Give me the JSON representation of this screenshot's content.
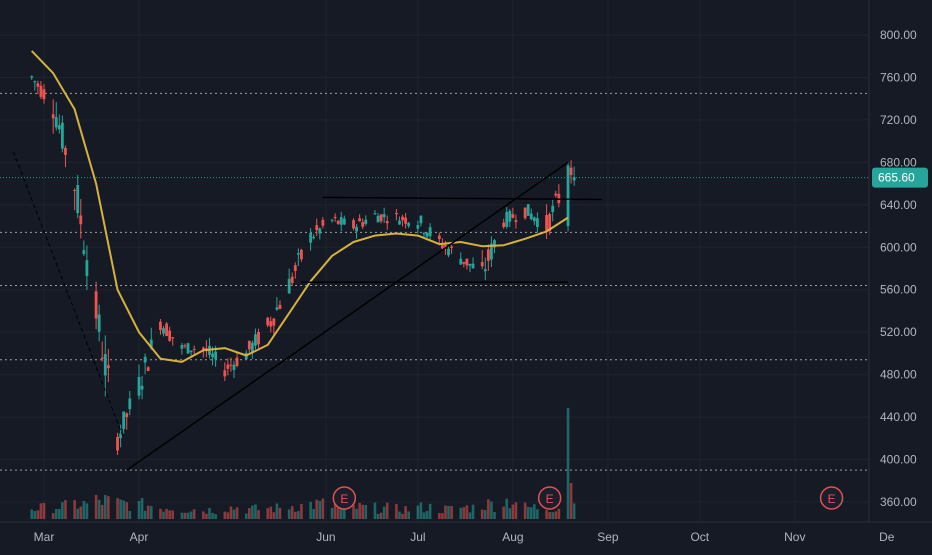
{
  "chart_data": {
    "type": "candlestick",
    "price_axis": {
      "ticks": [
        "800.00",
        "760.00",
        "720.00",
        "680.00",
        "640.00",
        "600.00",
        "560.00",
        "520.00",
        "480.00",
        "440.00",
        "400.00",
        "360.00"
      ],
      "range": [
        352,
        822
      ]
    },
    "time_axis": {
      "ticks": [
        "Mar",
        "Apr",
        "Jun",
        "Jul",
        "Aug",
        "Sep",
        "Oct",
        "Nov",
        "De"
      ]
    },
    "last_price": {
      "label": "665.60",
      "value": 665.6
    },
    "colors": {
      "up": "#26a69a",
      "down": "#ef5350",
      "ma": "#d4b23c",
      "background": "#161a25",
      "grid": "#2a2e39",
      "axis_text": "#b2b5be",
      "earnings": "#e05252"
    },
    "moving_average": {
      "type": "line",
      "points": [
        [
          "2024-02-26",
          785
        ],
        [
          "2024-03-04",
          764
        ],
        [
          "2024-03-11",
          730
        ],
        [
          "2024-03-18",
          660
        ],
        [
          "2024-03-25",
          560
        ],
        [
          "2024-04-01",
          520
        ],
        [
          "2024-04-08",
          495
        ],
        [
          "2024-04-15",
          492
        ],
        [
          "2024-04-22",
          503
        ],
        [
          "2024-04-29",
          505
        ],
        [
          "2024-05-06",
          498
        ],
        [
          "2024-05-13",
          508
        ],
        [
          "2024-05-20",
          538
        ],
        [
          "2024-05-27",
          568
        ],
        [
          "2024-06-03",
          592
        ],
        [
          "2024-06-10",
          605
        ],
        [
          "2024-06-17",
          611
        ],
        [
          "2024-06-24",
          613
        ],
        [
          "2024-07-01",
          611
        ],
        [
          "2024-07-08",
          603
        ],
        [
          "2024-07-15",
          605
        ],
        [
          "2024-07-22",
          601
        ],
        [
          "2024-07-29",
          602
        ],
        [
          "2024-08-05",
          608
        ],
        [
          "2024-08-12",
          615
        ],
        [
          "2024-08-19",
          628
        ]
      ]
    },
    "candles_outline": {
      "type": "candlestick",
      "points": [
        [
          "2024-02-26",
          760
        ],
        [
          "2024-03-04",
          735
        ],
        [
          "2024-03-11",
          660
        ],
        [
          "2024-03-18",
          540
        ],
        [
          "2024-03-25",
          420
        ],
        [
          "2024-04-01",
          470
        ],
        [
          "2024-04-08",
          530
        ],
        [
          "2024-04-15",
          505
        ],
        [
          "2024-04-22",
          505
        ],
        [
          "2024-04-29",
          485
        ],
        [
          "2024-05-06",
          500
        ],
        [
          "2024-05-13",
          525
        ],
        [
          "2024-05-20",
          565
        ],
        [
          "2024-05-27",
          610
        ],
        [
          "2024-06-03",
          625
        ],
        [
          "2024-06-10",
          620
        ],
        [
          "2024-06-17",
          630
        ],
        [
          "2024-06-24",
          628
        ],
        [
          "2024-07-01",
          625
        ],
        [
          "2024-07-08",
          605
        ],
        [
          "2024-07-15",
          590
        ],
        [
          "2024-07-22",
          575
        ],
        [
          "2024-07-29",
          625
        ],
        [
          "2024-08-05",
          635
        ],
        [
          "2024-08-12",
          620
        ],
        [
          "2024-08-19",
          666
        ]
      ]
    },
    "volume": {
      "type": "bar",
      "points": [
        [
          "2024-02-26",
          0.33
        ],
        [
          "2024-03-04",
          0.38
        ],
        [
          "2024-03-11",
          0.45
        ],
        [
          "2024-03-18",
          0.55
        ],
        [
          "2024-03-25",
          0.47
        ],
        [
          "2024-04-01",
          0.42
        ],
        [
          "2024-04-08",
          0.36
        ],
        [
          "2024-04-15",
          0.3
        ],
        [
          "2024-04-22",
          0.28
        ],
        [
          "2024-04-29",
          0.35
        ],
        [
          "2024-05-06",
          0.3
        ],
        [
          "2024-05-13",
          0.33
        ],
        [
          "2024-05-20",
          0.4
        ],
        [
          "2024-05-27",
          0.45
        ],
        [
          "2024-06-03",
          0.4
        ],
        [
          "2024-06-10",
          0.35
        ],
        [
          "2024-06-17",
          0.33
        ],
        [
          "2024-06-24",
          0.3
        ],
        [
          "2024-07-01",
          0.35
        ],
        [
          "2024-07-08",
          0.3
        ],
        [
          "2024-07-15",
          0.35
        ],
        [
          "2024-07-22",
          0.45
        ],
        [
          "2024-07-29",
          0.55
        ],
        [
          "2024-08-05",
          0.35
        ],
        [
          "2024-08-12",
          0.35
        ],
        [
          "2024-08-19",
          1.0
        ]
      ]
    },
    "horizontal_dotted_levels": [
      745,
      665.6,
      614,
      564,
      494,
      390
    ],
    "drawn_lines": {
      "trendline": {
        "from": [
          "2024-03-28",
          390
        ],
        "to": [
          "2024-08-19",
          680
        ]
      },
      "resistance": {
        "from": [
          "2024-05-31",
          647
        ],
        "to": [
          "2024-08-30",
          645
        ]
      },
      "support": {
        "from": [
          "2024-05-24",
          567
        ],
        "to": [
          "2024-08-19",
          567
        ]
      },
      "dashed_decline": {
        "from": [
          "2024-02-20",
          690
        ],
        "to": [
          "2024-03-27",
          420
        ]
      }
    },
    "earnings_markers": [
      {
        "date": "2024-06-07",
        "label": "E"
      },
      {
        "date": "2024-08-13",
        "label": "E"
      },
      {
        "date": "2024-11-13",
        "label": "E"
      }
    ]
  }
}
